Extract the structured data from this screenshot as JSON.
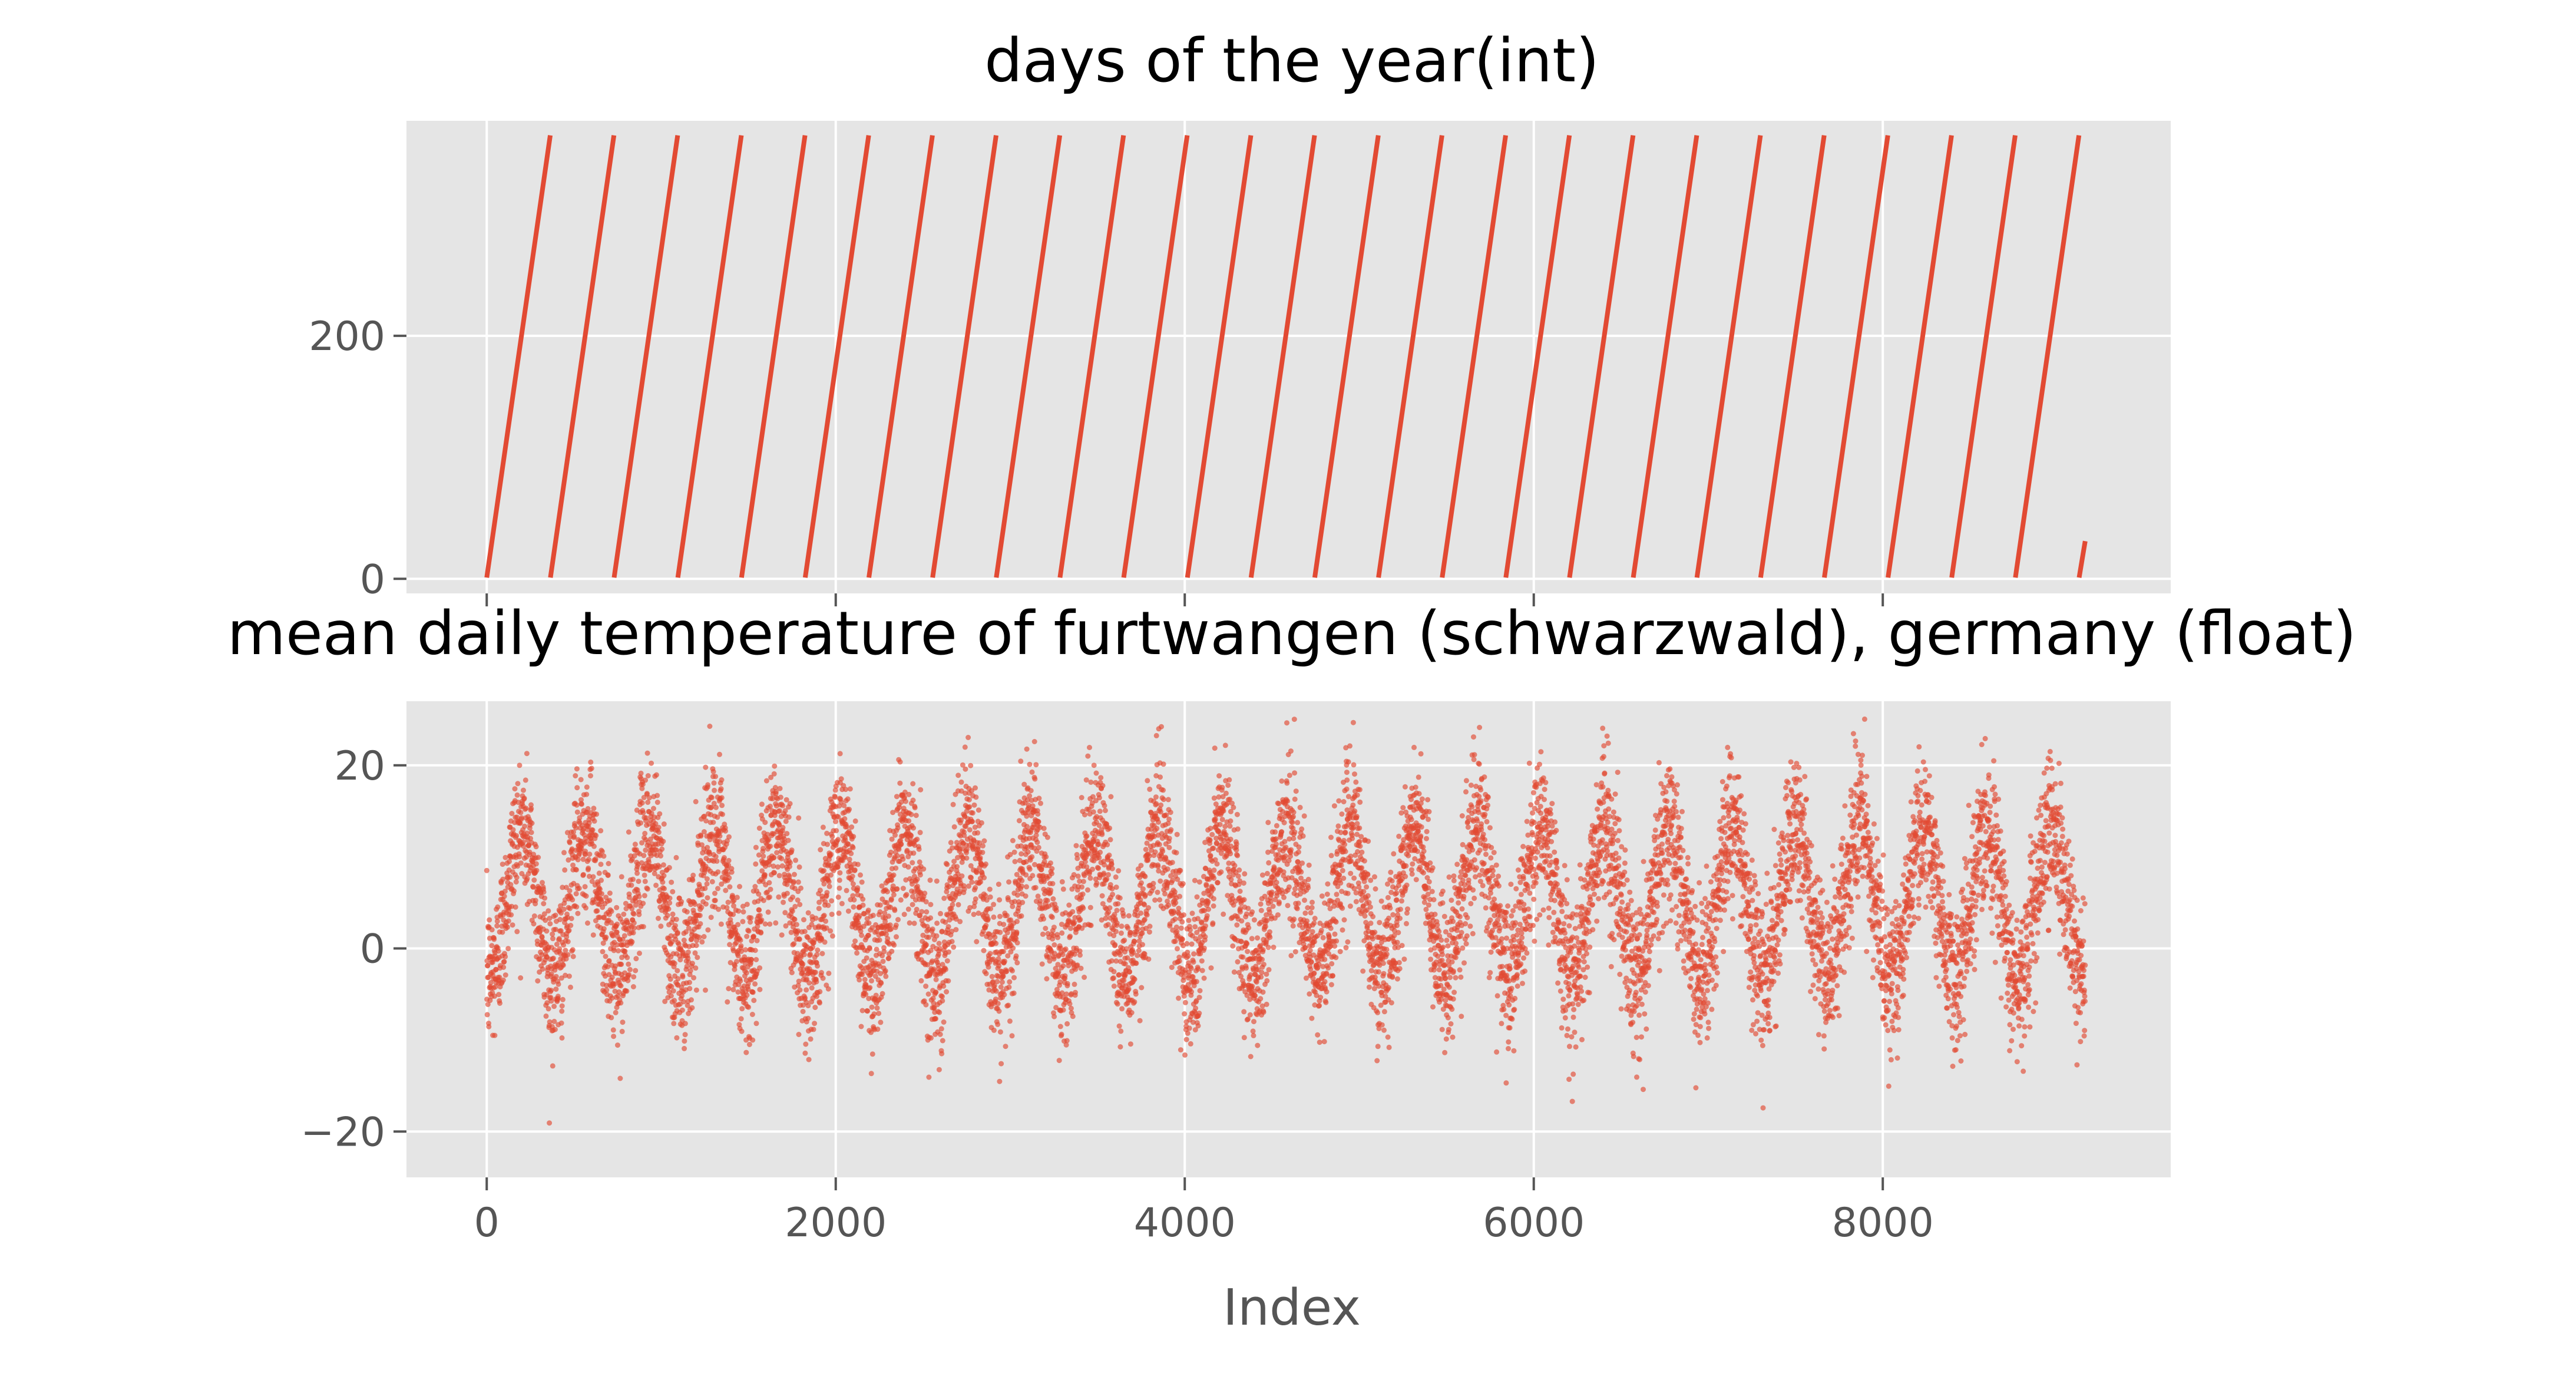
{
  "chart_data": [
    {
      "type": "line",
      "title": "days of the year(int)",
      "xlabel": "",
      "ylabel": "",
      "xlim": [
        -460,
        9650
      ],
      "ylim": [
        -12,
        377
      ],
      "xticks": [
        0,
        2000,
        4000,
        6000,
        8000
      ],
      "xtick_labels": [
        "",
        "",
        "",
        "",
        ""
      ],
      "yticks": [
        0,
        200
      ],
      "ytick_labels": [
        "0",
        "200"
      ],
      "grid": true,
      "legend": "none",
      "color": "#E24A33",
      "x_start": 0,
      "x_end": 9160,
      "y_min": 1,
      "y_max": 365,
      "period": 365,
      "last_value": 31
    },
    {
      "type": "scatter",
      "title": "mean daily temperature of furtwangen (schwarzwald), germany (float)",
      "xlabel": "Index",
      "ylabel": "",
      "xlim": [
        -460,
        9650
      ],
      "ylim": [
        -25,
        27
      ],
      "xticks": [
        0,
        2000,
        4000,
        6000,
        8000
      ],
      "xtick_labels": [
        "0",
        "2000",
        "4000",
        "6000",
        "8000"
      ],
      "yticks": [
        -20,
        0,
        20
      ],
      "ytick_labels": [
        "−20",
        "0",
        "20"
      ],
      "grid": true,
      "legend": "none",
      "color": "#E24A33",
      "x_start": 0,
      "x_end": 9160,
      "period": 365,
      "seasonal_mean": 5,
      "seasonal_amplitude": 8,
      "noise_sd": 4,
      "y_min_observed": -22.8,
      "y_max_observed": 25.5
    }
  ]
}
